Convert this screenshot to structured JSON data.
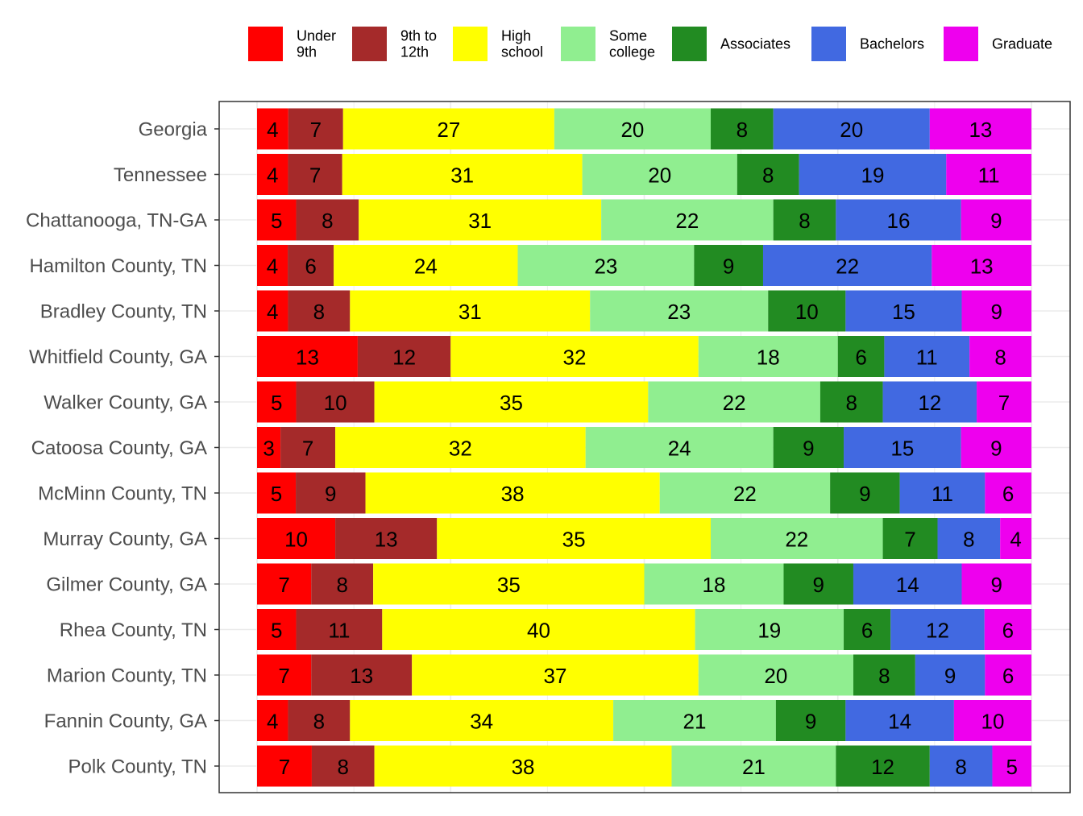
{
  "chart_data": {
    "type": "bar",
    "orientation": "horizontal",
    "stacked": "percent",
    "title": "",
    "xlabel": "",
    "ylabel": "",
    "xlim": [
      0,
      100
    ],
    "grid": true,
    "legend_position": "top",
    "categories": [
      "Georgia",
      "Tennessee",
      "Chattanooga, TN-GA",
      "Hamilton County, TN",
      "Bradley County, TN",
      "Whitfield County, GA",
      "Walker County, GA",
      "Catoosa County, GA",
      "McMinn County, TN",
      "Murray County, GA",
      "Gilmer County, GA",
      "Rhea County, TN",
      "Marion County, TN",
      "Fannin County, GA",
      "Polk County, TN"
    ],
    "series": [
      {
        "name": "Under 9th",
        "label_lines": [
          "Under",
          "9th"
        ],
        "color": "#ff0000",
        "values": [
          4,
          4,
          5,
          4,
          4,
          13,
          5,
          3,
          5,
          10,
          7,
          5,
          7,
          4,
          7
        ]
      },
      {
        "name": "9th to 12th",
        "label_lines": [
          "9th to",
          "12th"
        ],
        "color": "#a52a2a",
        "values": [
          7,
          7,
          8,
          6,
          8,
          12,
          10,
          7,
          9,
          13,
          8,
          11,
          13,
          8,
          8
        ]
      },
      {
        "name": "High school",
        "label_lines": [
          "High",
          "school"
        ],
        "color": "#ffff00",
        "values": [
          27,
          31,
          31,
          24,
          31,
          32,
          35,
          32,
          38,
          35,
          35,
          40,
          37,
          34,
          38
        ]
      },
      {
        "name": "Some college",
        "label_lines": [
          "Some",
          "college"
        ],
        "color": "#90ee90",
        "values": [
          20,
          20,
          22,
          23,
          23,
          18,
          22,
          24,
          22,
          22,
          18,
          19,
          20,
          21,
          21
        ]
      },
      {
        "name": "Associates",
        "label_lines": [
          "Associates"
        ],
        "color": "#228b22",
        "values": [
          8,
          8,
          8,
          9,
          10,
          6,
          8,
          9,
          9,
          7,
          9,
          6,
          8,
          9,
          12
        ]
      },
      {
        "name": "Bachelors",
        "label_lines": [
          "Bachelors"
        ],
        "color": "#4169e1",
        "values": [
          20,
          19,
          16,
          22,
          15,
          11,
          12,
          15,
          11,
          8,
          14,
          12,
          9,
          14,
          8
        ]
      },
      {
        "name": "Graduate",
        "label_lines": [
          "Graduate"
        ],
        "color": "#ee00ee",
        "values": [
          13,
          11,
          9,
          13,
          9,
          8,
          7,
          9,
          6,
          4,
          9,
          6,
          6,
          10,
          5
        ]
      }
    ]
  }
}
